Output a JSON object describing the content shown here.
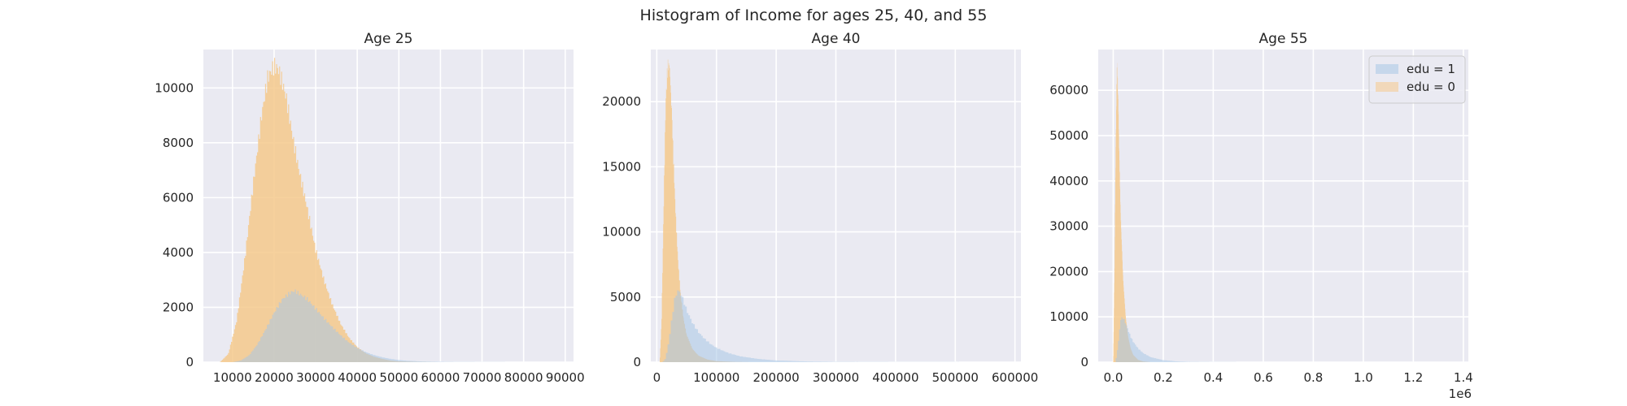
{
  "figure": {
    "title": "Histogram of Income for ages 25, 40, and 55"
  },
  "colors": {
    "background": "#eaeaf2",
    "grid": "#ffffff",
    "edu1": "#a8c7e6",
    "edu0": "#f5c98c",
    "overlap": "#bdbf9a",
    "text": "#262626"
  },
  "legend": {
    "placement": "top-right",
    "panel": 2,
    "entries": [
      "edu = 1",
      "edu = 0"
    ]
  },
  "chart_data": [
    {
      "type": "histogram",
      "title": "Age 25",
      "xlabel": "",
      "ylabel": "",
      "xlim": [
        3000,
        92000
      ],
      "ylim": [
        0,
        11400
      ],
      "grid": true,
      "xticks": [
        10000,
        20000,
        30000,
        40000,
        50000,
        60000,
        70000,
        80000,
        90000
      ],
      "xtick_labels": [
        "10000",
        "20000",
        "30000",
        "40000",
        "50000",
        "60000",
        "70000",
        "80000",
        "90000"
      ],
      "yticks": [
        0,
        2000,
        4000,
        6000,
        8000,
        10000
      ],
      "ytick_labels": [
        "0",
        "2000",
        "4000",
        "6000",
        "8000",
        "10000"
      ],
      "series": [
        {
          "name": "edu = 0",
          "color": "#f5c98c",
          "x": [
            7000,
            9000,
            11000,
            13000,
            15000,
            17000,
            18500,
            20000,
            21000,
            22000,
            23000,
            24500,
            26000,
            28000,
            30000,
            32000,
            34000,
            36000,
            38000,
            40000,
            42000,
            44000,
            46000,
            48000,
            50000,
            54000,
            60000
          ],
          "values": [
            0,
            300,
            1500,
            3800,
            6500,
            9000,
            10400,
            10800,
            10700,
            10200,
            9600,
            8200,
            7000,
            5600,
            4100,
            3000,
            2100,
            1400,
            900,
            550,
            330,
            200,
            120,
            60,
            30,
            10,
            0
          ]
        },
        {
          "name": "edu = 1",
          "color": "#a8c7e6",
          "x": [
            10000,
            12000,
            14000,
            16000,
            18000,
            20000,
            22000,
            24000,
            25000,
            26000,
            28000,
            30000,
            32000,
            34000,
            36000,
            38000,
            40000,
            42000,
            44000,
            46000,
            48000,
            50000,
            52000,
            56000,
            62000,
            70000,
            80000
          ],
          "values": [
            0,
            60,
            250,
            650,
            1200,
            1800,
            2300,
            2550,
            2600,
            2500,
            2300,
            1950,
            1600,
            1280,
            980,
            720,
            520,
            370,
            260,
            180,
            120,
            80,
            50,
            25,
            10,
            4,
            0
          ]
        }
      ]
    },
    {
      "type": "histogram",
      "title": "Age 40",
      "xlabel": "",
      "ylabel": "",
      "xlim": [
        -10000,
        610000
      ],
      "ylim": [
        0,
        24000
      ],
      "grid": true,
      "xticks": [
        0,
        100000,
        200000,
        300000,
        400000,
        500000,
        600000
      ],
      "xtick_labels": [
        "0",
        "100000",
        "200000",
        "300000",
        "400000",
        "500000",
        "600000"
      ],
      "yticks": [
        0,
        5000,
        10000,
        15000,
        20000
      ],
      "ytick_labels": [
        "0",
        "5000",
        "10000",
        "15000",
        "20000"
      ],
      "series": [
        {
          "name": "edu = 0",
          "color": "#f5c98c",
          "x": [
            5000,
            8000,
            12000,
            15000,
            18000,
            20000,
            22000,
            25000,
            28000,
            32000,
            36000,
            40000,
            45000,
            50000,
            60000,
            70000,
            85000,
            100000,
            130000,
            160000
          ],
          "values": [
            0,
            3000,
            13000,
            20000,
            22500,
            22900,
            22200,
            19500,
            15500,
            11000,
            7500,
            5200,
            3300,
            2100,
            1000,
            500,
            200,
            80,
            20,
            0
          ]
        },
        {
          "name": "edu = 1",
          "color": "#a8c7e6",
          "x": [
            10000,
            15000,
            20000,
            25000,
            30000,
            35000,
            40000,
            45000,
            50000,
            60000,
            70000,
            80000,
            90000,
            100000,
            120000,
            140000,
            170000,
            200000,
            250000,
            300000,
            400000,
            500000,
            600000
          ],
          "values": [
            0,
            300,
            1500,
            3200,
            4800,
            5500,
            5300,
            4700,
            4000,
            3000,
            2300,
            1800,
            1400,
            1100,
            700,
            450,
            250,
            130,
            60,
            25,
            10,
            4,
            0
          ]
        }
      ]
    },
    {
      "type": "histogram",
      "title": "Age 55",
      "xlabel": "",
      "ylabel": "",
      "xlim": [
        -60000,
        1420000
      ],
      "ylim": [
        0,
        69000
      ],
      "grid": true,
      "xticks": [
        0,
        200000,
        400000,
        600000,
        800000,
        1000000,
        1200000,
        1400000
      ],
      "xtick_labels": [
        "0.0",
        "0.2",
        "0.4",
        "0.6",
        "0.8",
        "1.0",
        "1.2",
        "1.4"
      ],
      "x_offset_label": "1e6",
      "yticks": [
        0,
        10000,
        20000,
        30000,
        40000,
        50000,
        60000
      ],
      "ytick_labels": [
        "0",
        "10000",
        "20000",
        "30000",
        "40000",
        "50000",
        "60000"
      ],
      "series": [
        {
          "name": "edu = 0",
          "color": "#f5c98c",
          "x": [
            0,
            5000,
            10000,
            15000,
            20000,
            25000,
            30000,
            40000,
            50000,
            60000,
            70000,
            80000,
            100000,
            120000,
            150000
          ],
          "values": [
            0,
            20000,
            48000,
            66000,
            58000,
            44000,
            32000,
            18000,
            10000,
            5500,
            3000,
            1600,
            500,
            150,
            0
          ]
        },
        {
          "name": "edu = 1",
          "color": "#a8c7e6",
          "x": [
            10000,
            20000,
            30000,
            40000,
            50000,
            60000,
            70000,
            80000,
            100000,
            120000,
            150000,
            200000,
            250000,
            300000,
            400000,
            500000,
            700000,
            1000000
          ],
          "values": [
            0,
            4000,
            9500,
            9800,
            8500,
            7000,
            5600,
            4500,
            3000,
            2000,
            1100,
            450,
            180,
            80,
            25,
            10,
            3,
            0
          ]
        }
      ]
    }
  ]
}
